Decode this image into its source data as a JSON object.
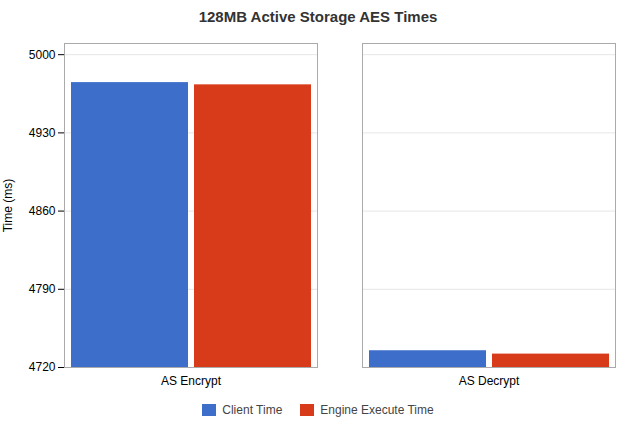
{
  "chart_data": {
    "type": "bar",
    "title": "128MB Active Storage AES Times",
    "ylabel": "Time (ms)",
    "categories": [
      "AS Encrypt",
      "AS Decrypt"
    ],
    "series": [
      {
        "name": "Client Time",
        "color": "#3d6ec9",
        "values": [
          4975,
          4735
        ]
      },
      {
        "name": "Engine Execute Time",
        "color": "#D83B1A",
        "values": [
          4973,
          4732
        ]
      }
    ],
    "ylim": [
      4720,
      5010
    ],
    "yticks": [
      4720,
      4790,
      4860,
      4930,
      5000
    ],
    "grid": true,
    "legend": "bottom"
  }
}
